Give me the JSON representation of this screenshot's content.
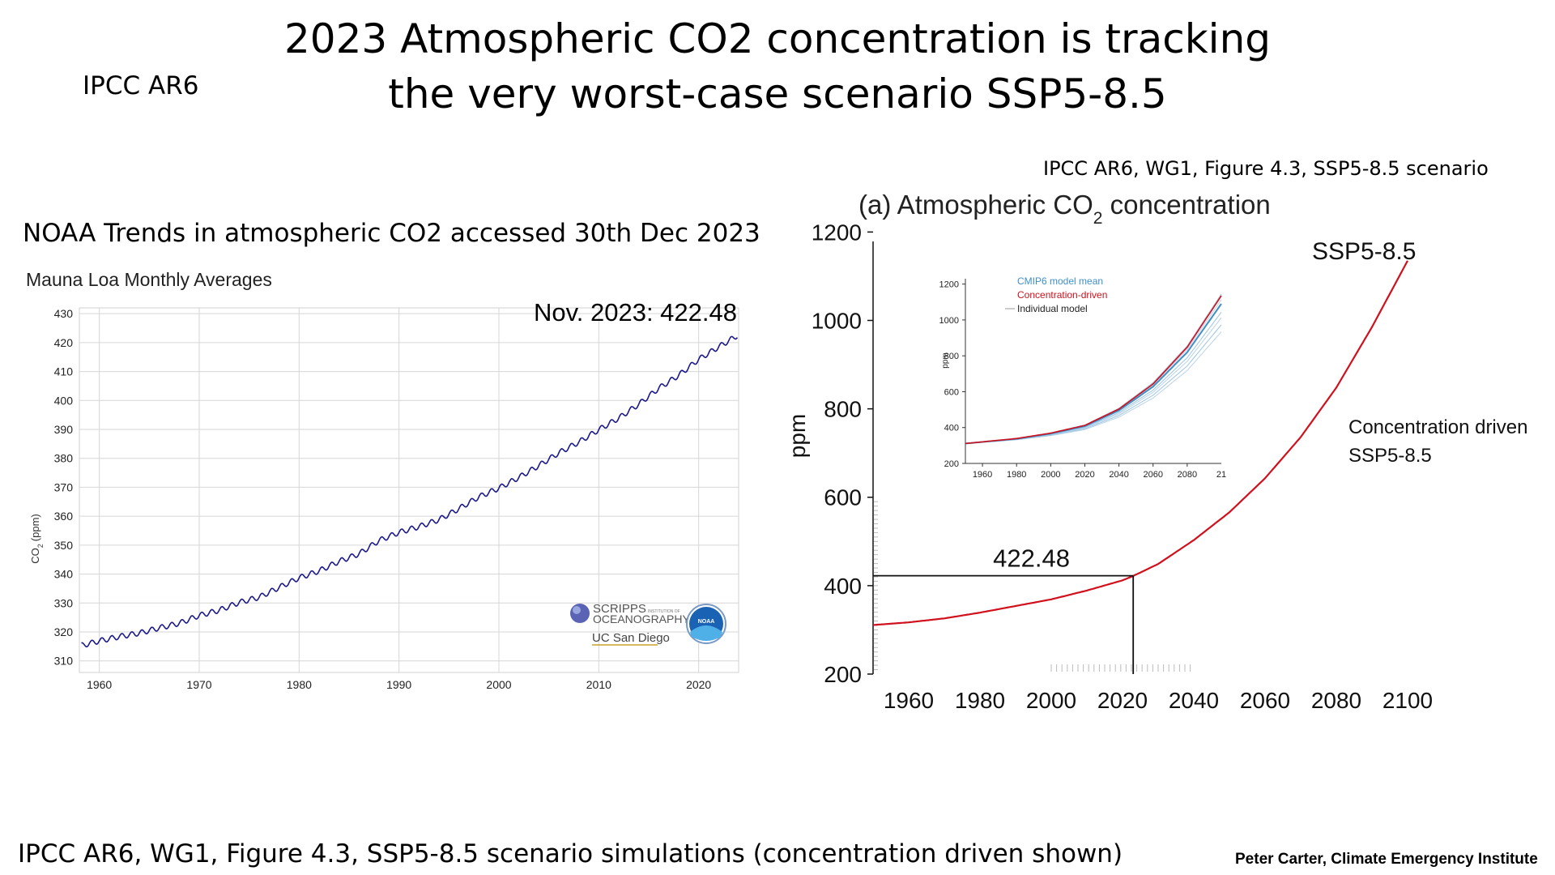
{
  "title": {
    "line1": "2023 Atmospheric CO2 concentration is tracking",
    "line2": "the very worst-case scenario SSP5-8.5"
  },
  "ipcc_tag": "IPCC AR6",
  "noaa_title": "NOAA Trends in atmospheric CO2 accessed 30th Dec 2023",
  "ipcc_figure_caption": "IPCC AR6, WG1, Figure 4.3, SSP5-8.5 scenario",
  "footer_caption": "IPCC AR6, WG1, Figure 4.3, SSP5-8.5 scenario simulations  (concentration driven shown)",
  "credit": "Peter Carter, Climate Emergency Institute",
  "logos": {
    "scripps_line1": "SCRIPPS",
    "scripps_line2": "OCEANOGRAPHY",
    "scripps_small": "INSTITUTION OF",
    "ucsd": "UC San Diego",
    "noaa": "NOAA"
  },
  "chart_data": [
    {
      "type": "line",
      "title": "Mauna Loa Monthly Averages",
      "ylabel_main": "CO",
      "ylabel_sub": "2",
      "ylabel_unit": "(ppm)",
      "xlim": [
        1958,
        2024
      ],
      "ylim": [
        306,
        432
      ],
      "x_ticks": [
        1960,
        1970,
        1980,
        1990,
        2000,
        2010,
        2020
      ],
      "y_ticks": [
        310,
        320,
        330,
        340,
        350,
        360,
        370,
        380,
        390,
        400,
        410,
        420,
        430
      ],
      "grid": true,
      "annotation": "Nov. 2023: 422.48",
      "line_color": "#1c1a8a",
      "series": [
        {
          "x": [
            1958.2,
            1960,
            1962,
            1964,
            1966,
            1968,
            1970,
            1972,
            1974,
            1976,
            1978,
            1980,
            1982,
            1984,
            1986,
            1988,
            1990,
            1992,
            1994,
            1996,
            1998,
            2000,
            2002,
            2004,
            2006,
            2008,
            2010,
            2012,
            2014,
            2016,
            2018,
            2020,
            2022,
            2023.9
          ],
          "y": [
            315.3,
            316.9,
            318.4,
            319.6,
            321.4,
            323.0,
            325.7,
            327.5,
            330.2,
            332.0,
            335.4,
            338.7,
            341.1,
            344.4,
            347.0,
            351.6,
            354.4,
            356.4,
            358.8,
            362.6,
            366.7,
            369.7,
            373.4,
            377.5,
            381.9,
            385.6,
            389.9,
            393.9,
            398.7,
            404.2,
            408.7,
            414.2,
            418.5,
            422.5
          ]
        }
      ]
    },
    {
      "type": "line",
      "title_prefix": "(a) Atmospheric CO",
      "title_sub": "2",
      "title_suffix": " concentration",
      "ylabel": "ppm",
      "xlim": [
        1950,
        2100
      ],
      "ylim": [
        200,
        1230
      ],
      "x_ticks": [
        1960,
        1980,
        2000,
        2020,
        2040,
        2060,
        2080,
        2100
      ],
      "y_ticks": [
        200,
        400,
        600,
        800,
        1000,
        1200
      ],
      "scenario_label": "SSP5-8.5",
      "series_label_line1": "Concentration driven",
      "series_label_line2": "SSP5-8.5",
      "marker_value": 422.48,
      "marker_year": 2023,
      "marker_label": "422.48",
      "line_color": "#d0101c",
      "series": [
        {
          "x": [
            1950,
            1960,
            1970,
            1980,
            1990,
            2000,
            2010,
            2020,
            2023,
            2030,
            2040,
            2050,
            2060,
            2070,
            2080,
            2090,
            2100
          ],
          "y": [
            311,
            317,
            326,
            339,
            354,
            369,
            389,
            412,
            422,
            449,
            503,
            566,
            643,
            736,
            848,
            985,
            1135
          ]
        }
      ]
    },
    {
      "type": "line",
      "legend": [
        "CMIP6 model mean",
        "Concentration-driven",
        "Individual model"
      ],
      "legend_colors": [
        "#3f8fc7",
        "#d0101c",
        "#999999"
      ],
      "ylabel": "ppm",
      "xlim": [
        1950,
        2100
      ],
      "ylim": [
        200,
        1230
      ],
      "x_ticks": [
        1960,
        1980,
        2000,
        2020,
        2040,
        2060,
        2080
      ],
      "last_tick_label": "21",
      "y_ticks": [
        200,
        400,
        600,
        800,
        1000,
        1200
      ],
      "series": [
        {
          "name": "Concentration-driven",
          "x": [
            1950,
            1980,
            2000,
            2020,
            2040,
            2060,
            2080,
            2100
          ],
          "y": [
            311,
            339,
            369,
            412,
            503,
            643,
            848,
            1135
          ]
        },
        {
          "name": "CMIP6 model mean",
          "x": [
            1950,
            1980,
            2000,
            2020,
            2040,
            2060,
            2080,
            2100
          ],
          "y": [
            311,
            337,
            366,
            408,
            495,
            628,
            820,
            1090
          ]
        }
      ]
    }
  ]
}
